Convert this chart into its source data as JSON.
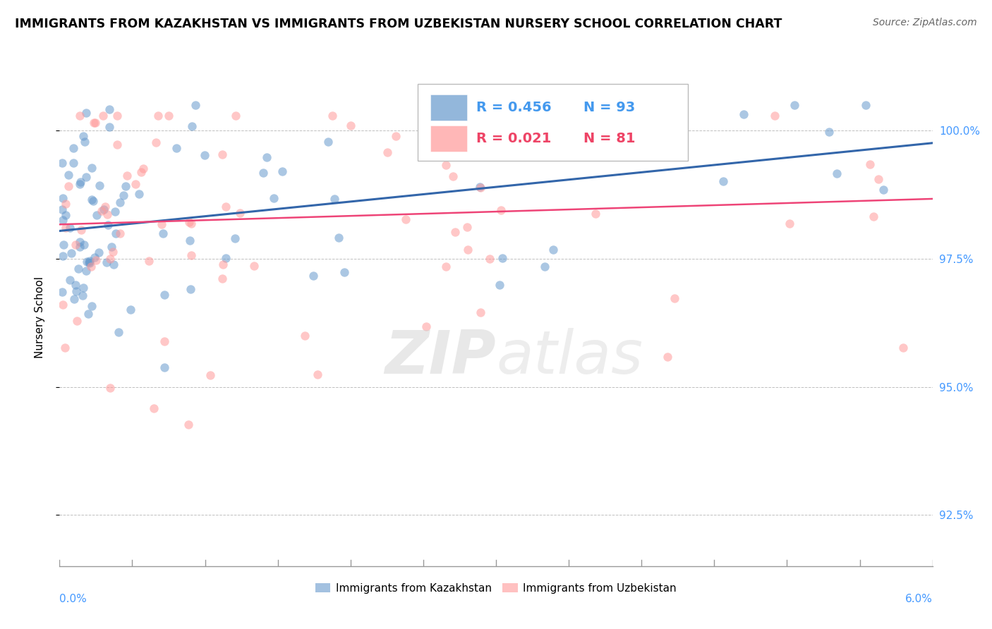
{
  "title": "IMMIGRANTS FROM KAZAKHSTAN VS IMMIGRANTS FROM UZBEKISTAN NURSERY SCHOOL CORRELATION CHART",
  "source": "Source: ZipAtlas.com",
  "ylabel": "Nursery School",
  "xmin": 0.0,
  "xmax": 6.0,
  "ymin": 91.5,
  "ymax": 101.2,
  "yticks": [
    92.5,
    95.0,
    97.5,
    100.0
  ],
  "ytick_labels": [
    "92.5%",
    "95.0%",
    "97.5%",
    "100.0%"
  ],
  "R_kaz": 0.456,
  "N_kaz": 93,
  "R_uzb": 0.021,
  "N_uzb": 81,
  "legend_kaz": "Immigrants from Kazakhstan",
  "legend_uzb": "Immigrants from Uzbekistan",
  "color_kaz": "#6699CC",
  "color_uzb": "#FF9999",
  "line_color_kaz": "#3366AA",
  "line_color_uzb": "#EE4477",
  "watermark": "ZIPatlas",
  "background_color": "#FFFFFF",
  "scatter_alpha": 0.55,
  "scatter_size": 80
}
